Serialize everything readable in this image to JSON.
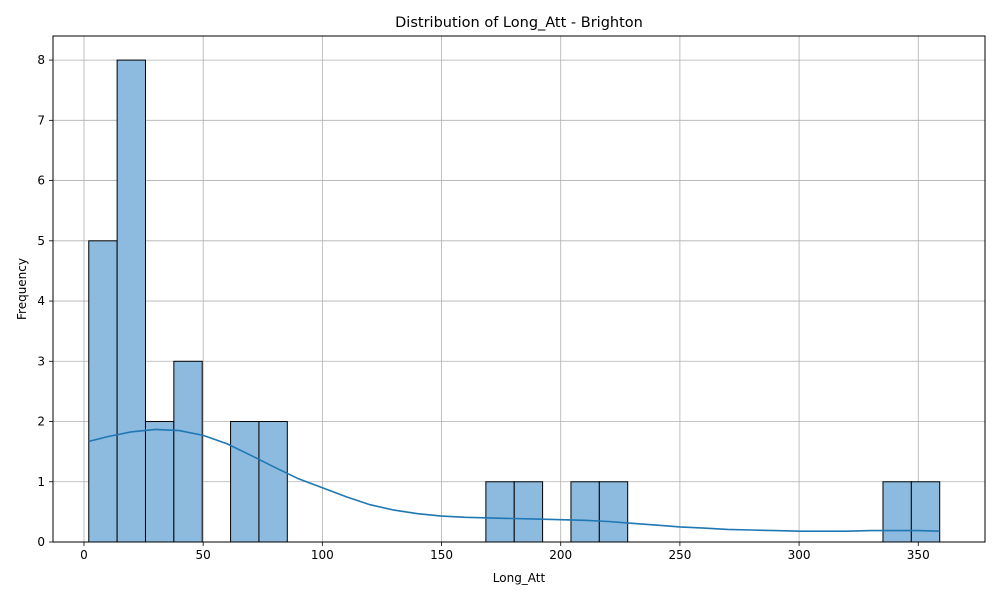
{
  "chart_data": {
    "type": "bar",
    "title": "Distribution of Long_Att - Brighton",
    "xlabel": "Long_Att",
    "ylabel": "Frequency",
    "xlim": [
      -13,
      378
    ],
    "ylim": [
      0,
      8.4
    ],
    "xticks": [
      0,
      50,
      100,
      150,
      200,
      250,
      300,
      350
    ],
    "yticks": [
      0,
      1,
      2,
      3,
      4,
      5,
      6,
      7,
      8
    ],
    "grid": true,
    "bin_edges": [
      2,
      13.9,
      25.8,
      37.7,
      49.6,
      61.5,
      73.4,
      85.3,
      97.2,
      109.1,
      121,
      132.9,
      144.8,
      156.7,
      168.6,
      180.5,
      192.4,
      204.3,
      216.2,
      228.1,
      240,
      251.9,
      263.8,
      275.7,
      287.6,
      299.5,
      311.4,
      323.3,
      335.2,
      347.1,
      359
    ],
    "counts": [
      5,
      8,
      2,
      3,
      0,
      2,
      2,
      0,
      0,
      0,
      0,
      0,
      0,
      0,
      1,
      1,
      0,
      1,
      1,
      0,
      0,
      0,
      0,
      0,
      0,
      0,
      0,
      0,
      1,
      1
    ],
    "kde": {
      "x": [
        2,
        10,
        20,
        30,
        40,
        50,
        60,
        70,
        80,
        90,
        100,
        110,
        120,
        130,
        140,
        150,
        160,
        170,
        180,
        190,
        200,
        210,
        220,
        230,
        240,
        250,
        260,
        270,
        280,
        290,
        300,
        310,
        320,
        330,
        340,
        350,
        359
      ],
      "y": [
        1.67,
        1.75,
        1.83,
        1.87,
        1.85,
        1.77,
        1.63,
        1.44,
        1.24,
        1.05,
        0.9,
        0.75,
        0.62,
        0.53,
        0.47,
        0.43,
        0.41,
        0.4,
        0.39,
        0.38,
        0.37,
        0.36,
        0.34,
        0.31,
        0.28,
        0.25,
        0.23,
        0.21,
        0.2,
        0.19,
        0.18,
        0.18,
        0.18,
        0.19,
        0.19,
        0.19,
        0.18
      ]
    },
    "bar_color": "#8dbadf",
    "bar_edge_color": "#000000",
    "line_color": "#1f77b4",
    "grid_color": "#b0b0b0"
  }
}
